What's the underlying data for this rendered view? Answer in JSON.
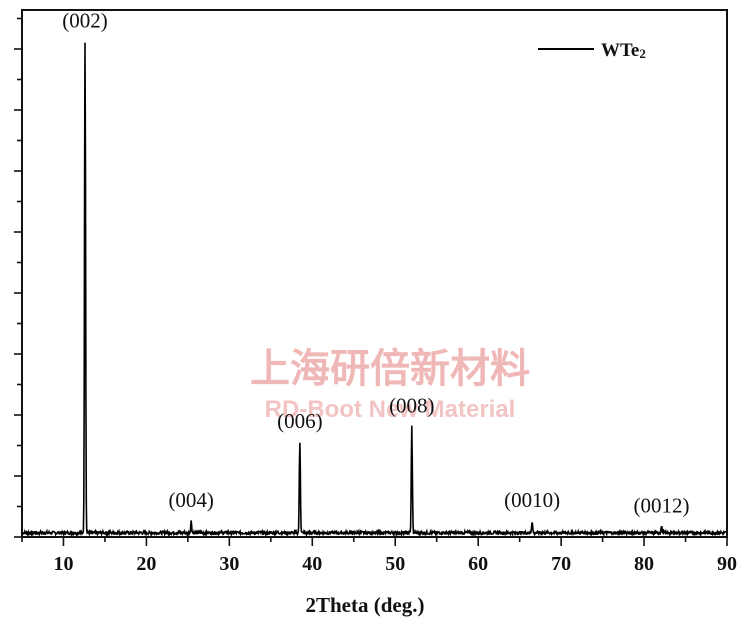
{
  "chart_data": {
    "type": "line",
    "xlabel": "2Theta (deg.)",
    "ylabel": "",
    "xlim": [
      5,
      90
    ],
    "ylim": [
      0,
      1
    ],
    "x_ticks": [
      "10",
      "20",
      "30",
      "40",
      "50",
      "60",
      "70",
      "80",
      "90"
    ],
    "y_tick_labels_shown": false,
    "grid": false,
    "legend_position": "top-right",
    "series": [
      {
        "name": "WTe2",
        "color": "#000000",
        "baseline": 0.008,
        "peaks": [
          {
            "label": "(002)",
            "x": 12.6,
            "y": 0.94
          },
          {
            "label": "(004)",
            "x": 25.4,
            "y": 0.03
          },
          {
            "label": "(006)",
            "x": 38.5,
            "y": 0.18
          },
          {
            "label": "(008)",
            "x": 52.0,
            "y": 0.21
          },
          {
            "label": "(0010)",
            "x": 66.5,
            "y": 0.03
          },
          {
            "label": "(0012)",
            "x": 82.1,
            "y": 0.02
          }
        ]
      }
    ]
  },
  "legend": {
    "series_name": "WTe",
    "subscript": "2"
  },
  "watermark": {
    "cn": "上海研倍新材料",
    "en": "RD-Boot New Material"
  }
}
